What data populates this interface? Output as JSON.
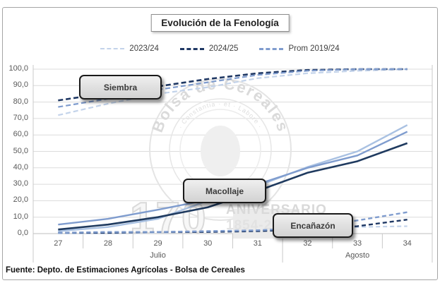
{
  "title": "Evolución de la Fenología",
  "source_note": "Fuente: Depto. de Estimaciones Agrícolas - Bolsa de Cereales",
  "watermark": {
    "seal_top_text": "Bolsa de Cereales",
    "seal_motto": "· Constantia · et · Labore ·",
    "anniversary_number": "170",
    "anniversary_label": "ANIVERSARIO",
    "anniversary_years": "1854-2024"
  },
  "chart_data": {
    "type": "line",
    "title": "Evolución de la Fenología",
    "xlabel": "",
    "ylabel": "",
    "ylim": [
      0,
      100
    ],
    "grid": true,
    "legend_position": "top",
    "y_tick_labels": [
      "100,0",
      "90,0",
      "80,0",
      "70,0",
      "60,0",
      "50,0",
      "40,0",
      "30,0",
      "20,0",
      "10,0",
      "0,0"
    ],
    "x_categories": [
      "27",
      "28",
      "29",
      "30",
      "31",
      "32",
      "33",
      "34"
    ],
    "month_groups": [
      {
        "label": "Julio",
        "weeks": 5
      },
      {
        "label": "Agosto",
        "weeks": 3
      }
    ],
    "legend": [
      {
        "label": "2023/24",
        "color": "#c3d3ea",
        "style": "dashed",
        "weight": 2.5
      },
      {
        "label": "2024/25",
        "color": "#1f3864",
        "style": "dashed",
        "weight": 3.5
      },
      {
        "label": "Prom 2019/24",
        "color": "#7f9cce",
        "style": "dashed",
        "weight": 3
      }
    ],
    "stages": [
      {
        "label": "Siembra",
        "line_style": "dashed",
        "series": [
          {
            "name": "2023/24",
            "color": "#c3d3ea",
            "dash": "7 4",
            "width": 2.2,
            "values": [
              72,
              79,
              85,
              89,
              94.5,
              97.5,
              99,
              100
            ]
          },
          {
            "name": "2024/25",
            "color": "#1f3864",
            "dash": "7 4",
            "width": 2.6,
            "values": [
              81,
              85.5,
              89.5,
              94,
              97.5,
              99.5,
              100,
              100
            ]
          },
          {
            "name": "Prom 2019/24",
            "color": "#7f9cce",
            "dash": "7 4",
            "width": 2.2,
            "values": [
              77,
              82,
              87.5,
              92,
              96.5,
              99,
              100,
              100
            ]
          }
        ]
      },
      {
        "label": "Macollaje",
        "line_style": "solid",
        "series": [
          {
            "name": "2023/24",
            "color": "#a9c1e2",
            "dash": null,
            "width": 2.4,
            "values": [
              1.5,
              4,
              9,
              20,
              29,
              40.5,
              50,
              66
            ]
          },
          {
            "name": "2024/25",
            "color": "#1f3a5f",
            "dash": null,
            "width": 2.6,
            "values": [
              2.5,
              5.5,
              10,
              16,
              26,
              37,
              44,
              55
            ]
          },
          {
            "name": "Prom 2019/24",
            "color": "#7f9cce",
            "dash": null,
            "width": 2.4,
            "values": [
              5.5,
              9,
              14.5,
              20.5,
              30,
              40,
              47.5,
              62
            ]
          }
        ]
      },
      {
        "label": "Encañazón",
        "line_style": "dashed",
        "series": [
          {
            "name": "2023/24",
            "color": "#c3d3ea",
            "dash": "6 4",
            "width": 2.2,
            "values": [
              0,
              0,
              0.5,
              1,
              2,
              3,
              4,
              4.5
            ]
          },
          {
            "name": "2024/25",
            "color": "#1f3864",
            "dash": "6 4",
            "width": 2.4,
            "values": [
              0.5,
              0.5,
              1,
              1,
              1.5,
              2.5,
              4.5,
              8.5
            ]
          },
          {
            "name": "Prom 2019/24",
            "color": "#7f9cce",
            "dash": "6 4",
            "width": 2.4,
            "values": [
              0.5,
              1,
              1,
              1.5,
              2,
              3.5,
              8,
              13
            ]
          }
        ]
      }
    ]
  }
}
